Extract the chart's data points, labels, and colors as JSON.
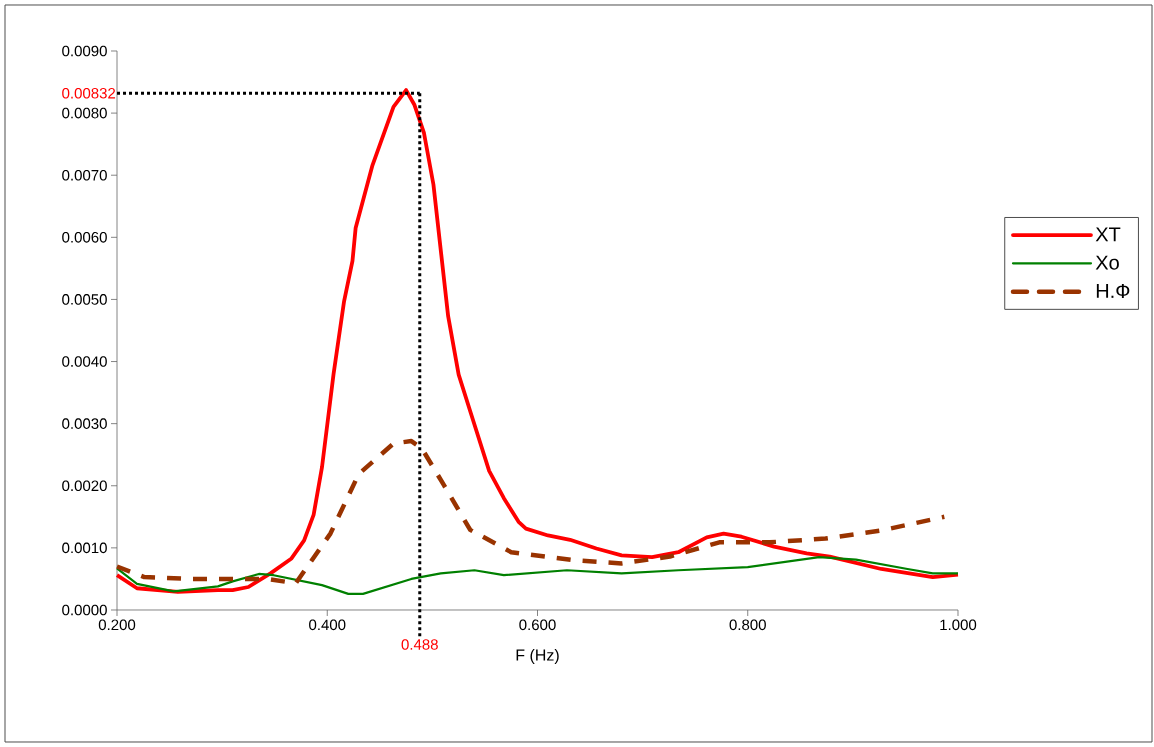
{
  "chart_data": {
    "type": "line",
    "xlabel": "F (Hz)",
    "xlim": [
      0.2,
      1.0
    ],
    "ylim": [
      0,
      0.009
    ],
    "xticks": [
      {
        "value": 0.2,
        "label": "0.200"
      },
      {
        "value": 0.4,
        "label": "0.400"
      },
      {
        "value": 0.6,
        "label": "0.600"
      },
      {
        "value": 0.8,
        "label": "0.800"
      },
      {
        "value": 1.0,
        "label": "1.000"
      }
    ],
    "yticks": [
      {
        "value": 0,
        "label": "0.0000"
      },
      {
        "value": 0.001,
        "label": "0.0010"
      },
      {
        "value": 0.002,
        "label": "0.0020"
      },
      {
        "value": 0.003,
        "label": "0.0030"
      },
      {
        "value": 0.004,
        "label": "0.0040"
      },
      {
        "value": 0.005,
        "label": "0.0050"
      },
      {
        "value": 0.006,
        "label": "0.0060"
      },
      {
        "value": 0.007,
        "label": "0.0070"
      },
      {
        "value": 0.008,
        "label": "0.0080"
      },
      {
        "value": 0.009,
        "label": "0.0090"
      }
    ],
    "grid": false,
    "legend": "right",
    "series": [
      {
        "name": "XT",
        "color": "#ff0000",
        "line_style": "solid",
        "x": [
          0.2,
          0.219,
          0.258,
          0.296,
          0.31,
          0.325,
          0.346,
          0.366,
          0.378,
          0.387,
          0.395,
          0.406,
          0.416,
          0.424,
          0.427,
          0.443,
          0.463,
          0.475,
          0.483,
          0.492,
          0.501,
          0.515,
          0.525,
          0.536,
          0.554,
          0.568,
          0.582,
          0.589,
          0.61,
          0.631,
          0.656,
          0.68,
          0.709,
          0.734,
          0.761,
          0.777,
          0.794,
          0.825,
          0.856,
          0.878,
          0.927,
          0.976,
          1.0
        ],
        "values": [
          0.00056,
          0.00035,
          0.00029,
          0.00032,
          0.00032,
          0.00037,
          0.00059,
          0.00083,
          0.00112,
          0.00153,
          0.0023,
          0.0038,
          0.00497,
          0.00562,
          0.00615,
          0.00716,
          0.0081,
          0.00837,
          0.00813,
          0.00768,
          0.00685,
          0.00473,
          0.00379,
          0.0032,
          0.00224,
          0.0018,
          0.00142,
          0.00131,
          0.0012,
          0.00113,
          0.00099,
          0.00088,
          0.00085,
          0.00093,
          0.00117,
          0.00123,
          0.00118,
          0.00102,
          0.00091,
          0.00086,
          0.00066,
          0.00053,
          0.00057
        ]
      },
      {
        "name": "Xo",
        "color": "#008000",
        "line_style": "solid",
        "x": [
          0.2,
          0.219,
          0.254,
          0.296,
          0.31,
          0.335,
          0.349,
          0.395,
          0.42,
          0.434,
          0.48,
          0.508,
          0.54,
          0.568,
          0.628,
          0.68,
          0.734,
          0.8,
          0.868,
          0.903,
          0.952,
          0.976,
          1.0
        ],
        "values": [
          0.00067,
          0.00042,
          0.0003,
          0.00038,
          0.00046,
          0.00058,
          0.00056,
          0.0004,
          0.00026,
          0.00026,
          0.0005,
          0.00059,
          0.00064,
          0.00056,
          0.00064,
          0.00059,
          0.00064,
          0.00069,
          0.00085,
          0.00081,
          0.00066,
          0.00059,
          0.00059
        ]
      },
      {
        "name": "Н.Ф",
        "color": "#993300",
        "line_style": "dashed",
        "x": [
          0.2,
          0.226,
          0.272,
          0.343,
          0.37,
          0.403,
          0.43,
          0.463,
          0.48,
          0.49,
          0.511,
          0.536,
          0.575,
          0.635,
          0.68,
          0.726,
          0.773,
          0.821,
          0.874,
          0.927,
          0.987
        ],
        "values": [
          0.0007,
          0.00053,
          0.0005,
          0.0005,
          0.00043,
          0.00123,
          0.00219,
          0.00268,
          0.00272,
          0.0026,
          0.00201,
          0.00129,
          0.00093,
          0.0008,
          0.00075,
          0.00086,
          0.00109,
          0.00109,
          0.00115,
          0.00128,
          0.0015
        ]
      }
    ],
    "ref_lines": [
      {
        "axis": "y",
        "value": 0.00832,
        "label": "0.00832",
        "color": "#000000",
        "line_style": "dotted"
      },
      {
        "axis": "x",
        "value": 0.488,
        "label": "0.488",
        "color": "#000000",
        "line_style": "dotted"
      }
    ]
  }
}
